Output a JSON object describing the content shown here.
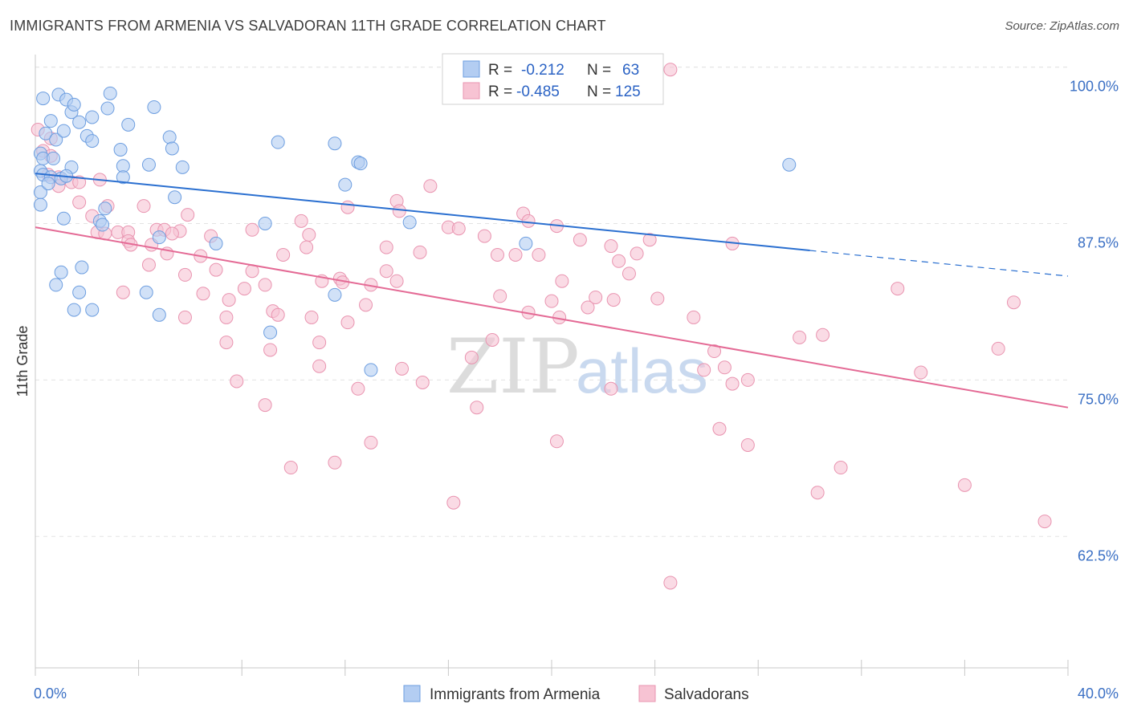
{
  "header": {
    "title": "IMMIGRANTS FROM ARMENIA VS SALVADORAN 11TH GRADE CORRELATION CHART",
    "source": "Source: ZipAtlas.com"
  },
  "watermark": {
    "zip": "ZIP",
    "atlas": "atlas"
  },
  "colors": {
    "armenia_fill": "#b3cdf2",
    "armenia_stroke": "#6d9ee0",
    "armenia_line": "#2a6fd0",
    "salvadoran_fill": "#f7c3d3",
    "salvadoran_stroke": "#e994b0",
    "salvadoran_line": "#e46a95",
    "tick_label": "#3a6fc4"
  },
  "legend": {
    "rows": [
      {
        "r_label": "R =",
        "r_value": "-0.212",
        "n_label": "N =",
        "n_value": "63"
      },
      {
        "r_label": "R =",
        "r_value": "-0.485",
        "n_label": "N =",
        "n_value": "125"
      }
    ]
  },
  "chart_data": {
    "type": "scatter",
    "title": "IMMIGRANTS FROM ARMENIA VS SALVADORAN 11TH GRADE CORRELATION CHART",
    "xlabel": "",
    "ylabel": "11th Grade",
    "xlim": [
      0,
      40
    ],
    "ylim": [
      52,
      101
    ],
    "x_tick_labels": [
      "0.0%",
      "40.0%"
    ],
    "y_ticks": [
      62.5,
      75.0,
      87.5,
      100.0
    ],
    "y_tick_labels": [
      "62.5%",
      "75.0%",
      "87.5%",
      "100.0%"
    ],
    "grid": true,
    "legend_position": "top-center",
    "series": [
      {
        "name": "Immigrants from Armenia",
        "r": -0.212,
        "n": 63,
        "trend": {
          "x0": 0,
          "y0": 91.5,
          "x1": 40,
          "y1": 83.3,
          "solid_until": 30
        },
        "points": [
          [
            0.3,
            97.5
          ],
          [
            0.9,
            97.8
          ],
          [
            1.2,
            97.4
          ],
          [
            1.4,
            96.4
          ],
          [
            1.5,
            97.0
          ],
          [
            2.9,
            97.9
          ],
          [
            0.6,
            95.7
          ],
          [
            1.7,
            95.6
          ],
          [
            2.0,
            94.5
          ],
          [
            2.2,
            96.0
          ],
          [
            2.8,
            96.7
          ],
          [
            3.6,
            95.4
          ],
          [
            4.6,
            96.8
          ],
          [
            0.4,
            94.7
          ],
          [
            0.8,
            94.2
          ],
          [
            1.1,
            94.9
          ],
          [
            2.2,
            94.1
          ],
          [
            3.3,
            93.4
          ],
          [
            5.2,
            94.4
          ],
          [
            5.3,
            93.5
          ],
          [
            9.4,
            94.0
          ],
          [
            11.6,
            93.9
          ],
          [
            0.2,
            93.1
          ],
          [
            0.3,
            92.7
          ],
          [
            0.7,
            92.7
          ],
          [
            1.4,
            92.0
          ],
          [
            3.4,
            92.1
          ],
          [
            4.4,
            92.2
          ],
          [
            5.7,
            92.0
          ],
          [
            12.5,
            92.4
          ],
          [
            12.6,
            92.3
          ],
          [
            29.2,
            92.2
          ],
          [
            0.2,
            91.7
          ],
          [
            0.3,
            91.4
          ],
          [
            0.6,
            91.2
          ],
          [
            1.0,
            91.1
          ],
          [
            1.2,
            91.3
          ],
          [
            3.4,
            91.2
          ],
          [
            12.0,
            90.6
          ],
          [
            0.2,
            90.0
          ],
          [
            5.4,
            89.6
          ],
          [
            2.7,
            88.7
          ],
          [
            1.1,
            87.9
          ],
          [
            2.5,
            87.7
          ],
          [
            2.6,
            87.4
          ],
          [
            8.9,
            87.5
          ],
          [
            14.5,
            87.6
          ],
          [
            4.8,
            86.4
          ],
          [
            7.0,
            85.9
          ],
          [
            19.0,
            85.9
          ],
          [
            1.8,
            84.0
          ],
          [
            1.0,
            83.6
          ],
          [
            0.8,
            82.6
          ],
          [
            1.7,
            82.0
          ],
          [
            4.3,
            82.0
          ],
          [
            11.6,
            81.8
          ],
          [
            1.5,
            80.6
          ],
          [
            2.2,
            80.6
          ],
          [
            4.8,
            80.2
          ],
          [
            9.1,
            78.8
          ],
          [
            13.0,
            75.8
          ],
          [
            0.2,
            89.0
          ],
          [
            0.5,
            90.7
          ]
        ]
      },
      {
        "name": "Salvadorans",
        "r": -0.485,
        "n": 125,
        "trend": {
          "x0": 0,
          "y0": 87.2,
          "x1": 40,
          "y1": 72.8
        },
        "points": [
          [
            24.6,
            99.8
          ],
          [
            0.1,
            95.0
          ],
          [
            0.6,
            94.3
          ],
          [
            0.3,
            93.3
          ],
          [
            0.6,
            92.9
          ],
          [
            0.5,
            91.4
          ],
          [
            0.9,
            91.2
          ],
          [
            1.4,
            90.8
          ],
          [
            1.7,
            90.8
          ],
          [
            2.5,
            91.0
          ],
          [
            0.9,
            90.5
          ],
          [
            15.3,
            90.5
          ],
          [
            14.0,
            89.3
          ],
          [
            1.7,
            89.2
          ],
          [
            2.8,
            88.9
          ],
          [
            4.2,
            88.9
          ],
          [
            12.1,
            88.8
          ],
          [
            14.1,
            88.5
          ],
          [
            18.9,
            88.3
          ],
          [
            5.9,
            88.2
          ],
          [
            2.2,
            88.1
          ],
          [
            10.3,
            87.7
          ],
          [
            19.1,
            87.7
          ],
          [
            20.2,
            87.3
          ],
          [
            16.0,
            87.2
          ],
          [
            16.4,
            87.1
          ],
          [
            4.7,
            87.0
          ],
          [
            5.0,
            87.0
          ],
          [
            5.6,
            86.9
          ],
          [
            2.4,
            86.8
          ],
          [
            3.2,
            86.8
          ],
          [
            3.6,
            86.8
          ],
          [
            2.7,
            86.7
          ],
          [
            5.3,
            86.7
          ],
          [
            8.4,
            87.0
          ],
          [
            10.6,
            86.6
          ],
          [
            17.4,
            86.5
          ],
          [
            6.8,
            86.5
          ],
          [
            21.1,
            86.2
          ],
          [
            23.8,
            86.2
          ],
          [
            3.6,
            86.1
          ],
          [
            3.7,
            85.8
          ],
          [
            4.5,
            85.8
          ],
          [
            10.5,
            85.6
          ],
          [
            13.6,
            85.6
          ],
          [
            22.3,
            85.7
          ],
          [
            14.9,
            85.2
          ],
          [
            5.1,
            85.1
          ],
          [
            9.6,
            85.0
          ],
          [
            17.9,
            85.0
          ],
          [
            18.6,
            85.0
          ],
          [
            19.5,
            85.0
          ],
          [
            6.4,
            84.9
          ],
          [
            23.3,
            85.1
          ],
          [
            27.0,
            85.9
          ],
          [
            22.6,
            84.5
          ],
          [
            4.4,
            84.2
          ],
          [
            7.0,
            83.8
          ],
          [
            8.4,
            83.7
          ],
          [
            13.6,
            83.7
          ],
          [
            23.0,
            83.5
          ],
          [
            5.8,
            83.4
          ],
          [
            11.8,
            83.1
          ],
          [
            11.1,
            82.9
          ],
          [
            14.0,
            82.9
          ],
          [
            11.9,
            82.8
          ],
          [
            8.9,
            82.6
          ],
          [
            13.0,
            82.6
          ],
          [
            20.4,
            82.9
          ],
          [
            8.1,
            82.3
          ],
          [
            3.4,
            82.0
          ],
          [
            6.5,
            81.9
          ],
          [
            33.4,
            82.3
          ],
          [
            18.0,
            81.7
          ],
          [
            21.7,
            81.6
          ],
          [
            22.4,
            81.4
          ],
          [
            24.1,
            81.5
          ],
          [
            7.5,
            81.4
          ],
          [
            20.0,
            81.3
          ],
          [
            12.8,
            81.0
          ],
          [
            21.4,
            80.8
          ],
          [
            9.2,
            80.5
          ],
          [
            19.1,
            80.4
          ],
          [
            7.4,
            80.0
          ],
          [
            9.4,
            80.2
          ],
          [
            5.8,
            80.0
          ],
          [
            20.3,
            80.0
          ],
          [
            10.7,
            80.0
          ],
          [
            12.1,
            79.6
          ],
          [
            25.5,
            80.0
          ],
          [
            17.7,
            78.2
          ],
          [
            29.6,
            78.4
          ],
          [
            30.5,
            78.6
          ],
          [
            37.3,
            77.5
          ],
          [
            7.4,
            78.0
          ],
          [
            11.0,
            78.0
          ],
          [
            9.1,
            77.4
          ],
          [
            16.9,
            76.8
          ],
          [
            26.3,
            77.3
          ],
          [
            11.0,
            76.1
          ],
          [
            26.7,
            76.0
          ],
          [
            14.2,
            75.9
          ],
          [
            15.0,
            74.8
          ],
          [
            34.3,
            75.6
          ],
          [
            7.8,
            74.9
          ],
          [
            25.9,
            75.8
          ],
          [
            27.6,
            75.0
          ],
          [
            12.5,
            74.3
          ],
          [
            22.3,
            74.3
          ],
          [
            27.0,
            74.7
          ],
          [
            8.9,
            73.0
          ],
          [
            17.1,
            72.8
          ],
          [
            26.5,
            71.1
          ],
          [
            20.2,
            70.1
          ],
          [
            13.0,
            70.0
          ],
          [
            27.6,
            69.8
          ],
          [
            9.9,
            68.0
          ],
          [
            11.6,
            68.4
          ],
          [
            31.2,
            68.0
          ],
          [
            36.0,
            66.6
          ],
          [
            30.3,
            66.0
          ],
          [
            16.2,
            65.2
          ],
          [
            39.1,
            63.7
          ],
          [
            37.9,
            81.2
          ],
          [
            24.6,
            58.8
          ]
        ]
      }
    ]
  },
  "bottom_legend": {
    "items": [
      {
        "label": "Immigrants from Armenia"
      },
      {
        "label": "Salvadorans"
      }
    ]
  }
}
